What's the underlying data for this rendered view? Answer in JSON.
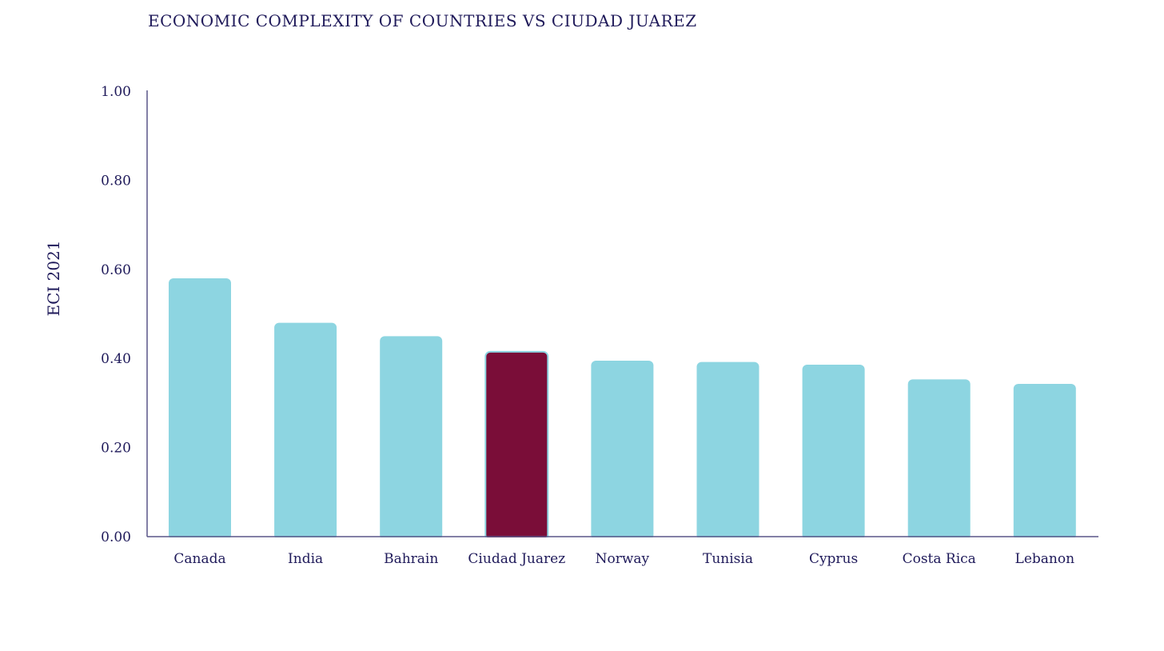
{
  "chart_data": {
    "type": "bar",
    "title": "ECONOMIC COMPLEXITY OF COUNTRIES VS CIUDAD JUAREZ",
    "xlabel": "",
    "ylabel": "ECI 2021",
    "ylim": [
      0,
      1
    ],
    "yticks": [
      "0.00",
      "0.20",
      "0.40",
      "0.60",
      "0.80",
      "1.00"
    ],
    "ytick_values": [
      0,
      0.2,
      0.4,
      0.6,
      0.8,
      1.0
    ],
    "categories": [
      "Canada",
      "India",
      "Bahrain",
      "Ciudad Juarez",
      "Norway",
      "Tunisia",
      "Cyprus",
      "Costa Rica",
      "Lebanon"
    ],
    "values": [
      0.58,
      0.48,
      0.45,
      0.415,
      0.395,
      0.392,
      0.386,
      0.353,
      0.343
    ],
    "highlight": "Ciudad Juarez",
    "grid": false,
    "colors": {
      "bar": "#8dd5e1",
      "highlight": "#7a0d38",
      "text": "#1f1a5a",
      "axis": "#5a5688"
    }
  }
}
